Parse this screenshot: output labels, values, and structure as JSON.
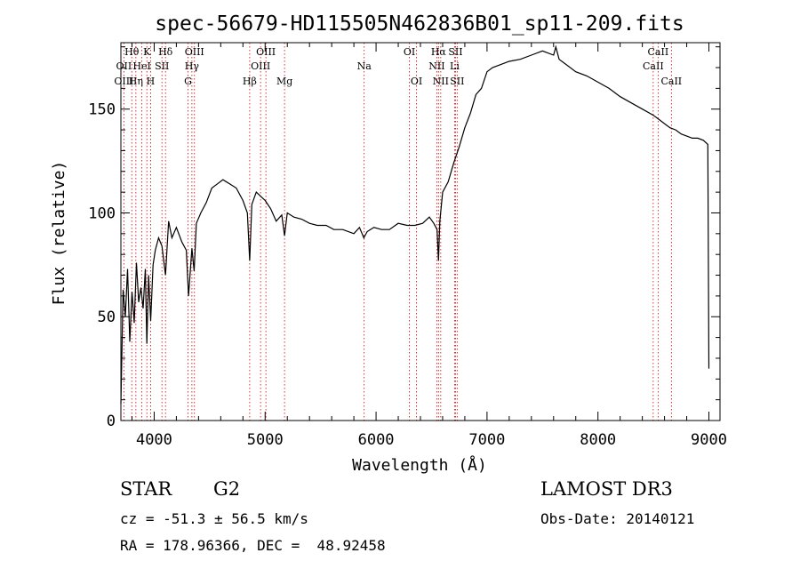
{
  "chart_data": {
    "type": "line",
    "title": "spec-56679-HD115505N462836B01_sp11-209.fits",
    "xlabel": "Wavelength (Å)",
    "ylabel": "Flux (relative)",
    "xlim": [
      3700,
      9100
    ],
    "ylim": [
      0,
      182
    ],
    "x_ticks": [
      4000,
      5000,
      6000,
      7000,
      8000,
      9000
    ],
    "y_ticks": [
      0,
      50,
      100,
      150
    ],
    "grid": false,
    "series": [
      {
        "name": "spectrum",
        "x": [
          3700,
          3720,
          3740,
          3760,
          3780,
          3800,
          3820,
          3840,
          3860,
          3880,
          3900,
          3920,
          3934,
          3950,
          3968,
          3990,
          4010,
          4040,
          4070,
          4102,
          4130,
          4160,
          4200,
          4250,
          4290,
          4310,
          4340,
          4360,
          4380,
          4420,
          4470,
          4520,
          4570,
          4620,
          4680,
          4740,
          4800,
          4840,
          4861,
          4880,
          4920,
          4960,
          5000,
          5050,
          5100,
          5150,
          5175,
          5200,
          5260,
          5330,
          5400,
          5470,
          5550,
          5620,
          5700,
          5800,
          5850,
          5890,
          5920,
          5980,
          6050,
          6120,
          6200,
          6280,
          6350,
          6420,
          6480,
          6520,
          6550,
          6563,
          6575,
          6600,
          6650,
          6700,
          6750,
          6800,
          6850,
          6900,
          6950,
          7000,
          7050,
          7100,
          7200,
          7300,
          7400,
          7500,
          7600,
          7620,
          7650,
          7700,
          7800,
          7900,
          8000,
          8100,
          8200,
          8300,
          8400,
          8500,
          8550,
          8600,
          8650,
          8700,
          8750,
          8800,
          8850,
          8900,
          8950,
          8990,
          9000
        ],
        "y": [
          8,
          63,
          50,
          73,
          38,
          62,
          47,
          76,
          57,
          64,
          54,
          73,
          37,
          70,
          48,
          75,
          82,
          88,
          84,
          70,
          96,
          88,
          93,
          86,
          82,
          60,
          83,
          72,
          95,
          100,
          105,
          112,
          114,
          116,
          114,
          112,
          106,
          100,
          77,
          104,
          110,
          108,
          106,
          102,
          96,
          99,
          89,
          100,
          98,
          97,
          95,
          94,
          94,
          92,
          92,
          90,
          93,
          88,
          91,
          93,
          92,
          92,
          95,
          94,
          94,
          95,
          98,
          95,
          92,
          77,
          96,
          110,
          115,
          124,
          132,
          141,
          148,
          157,
          160,
          168,
          170,
          171,
          173,
          174,
          176,
          178,
          176,
          180,
          174,
          172,
          168,
          166,
          163,
          160,
          156,
          153,
          150,
          147,
          145,
          143,
          141,
          140,
          138,
          137,
          136,
          136,
          135,
          133,
          25
        ]
      }
    ],
    "line_labels": [
      {
        "label": "Hθ",
        "wavelength": 3798,
        "row": 1
      },
      {
        "label": "OII",
        "wavelength": 3727,
        "row": 2
      },
      {
        "label": "OIII",
        "wavelength": 3727,
        "row": 3
      },
      {
        "label": "K",
        "wavelength": 3934,
        "row": 1
      },
      {
        "label": "HeI",
        "wavelength": 3889,
        "row": 2
      },
      {
        "label": "Hη",
        "wavelength": 3835,
        "row": 3
      },
      {
        "label": "H",
        "wavelength": 3968,
        "row": 3
      },
      {
        "label": "SII",
        "wavelength": 4070,
        "row": 2
      },
      {
        "label": "Hδ",
        "wavelength": 4102,
        "row": 1
      },
      {
        "label": "OIII",
        "wavelength": 4363,
        "row": 1
      },
      {
        "label": "Hγ",
        "wavelength": 4340,
        "row": 2
      },
      {
        "label": "G",
        "wavelength": 4305,
        "row": 3
      },
      {
        "label": "Hβ",
        "wavelength": 4861,
        "row": 3
      },
      {
        "label": "OIII",
        "wavelength": 5007,
        "row": 1
      },
      {
        "label": "OIII",
        "wavelength": 4959,
        "row": 2
      },
      {
        "label": "Mg",
        "wavelength": 5175,
        "row": 3
      },
      {
        "label": "Na",
        "wavelength": 5893,
        "row": 2
      },
      {
        "label": "OI",
        "wavelength": 6300,
        "row": 1
      },
      {
        "label": "OI",
        "wavelength": 6364,
        "row": 3
      },
      {
        "label": "Hα",
        "wavelength": 6563,
        "row": 1
      },
      {
        "label": "NII",
        "wavelength": 6548,
        "row": 2
      },
      {
        "label": "NII",
        "wavelength": 6583,
        "row": 3
      },
      {
        "label": "SII",
        "wavelength": 6716,
        "row": 1
      },
      {
        "label": "Li",
        "wavelength": 6708,
        "row": 2
      },
      {
        "label": "SII",
        "wavelength": 6731,
        "row": 3
      },
      {
        "label": "CaII",
        "wavelength": 8542,
        "row": 1
      },
      {
        "label": "CaII",
        "wavelength": 8498,
        "row": 2
      },
      {
        "label": "CaII",
        "wavelength": 8662,
        "row": 3
      }
    ]
  },
  "info": {
    "object_type": "STAR",
    "object_class": "G2",
    "survey": "LAMOST DR3",
    "cz": "cz = -51.3 ± 56.5 km/s",
    "obs_date": "Obs-Date: 20140121",
    "radec": "RA = 178.96366, DEC =  48.92458"
  },
  "colors": {
    "spectrum": "#000000",
    "line_markers": "#cc0000",
    "text": "#000000",
    "background": "#ffffff"
  }
}
